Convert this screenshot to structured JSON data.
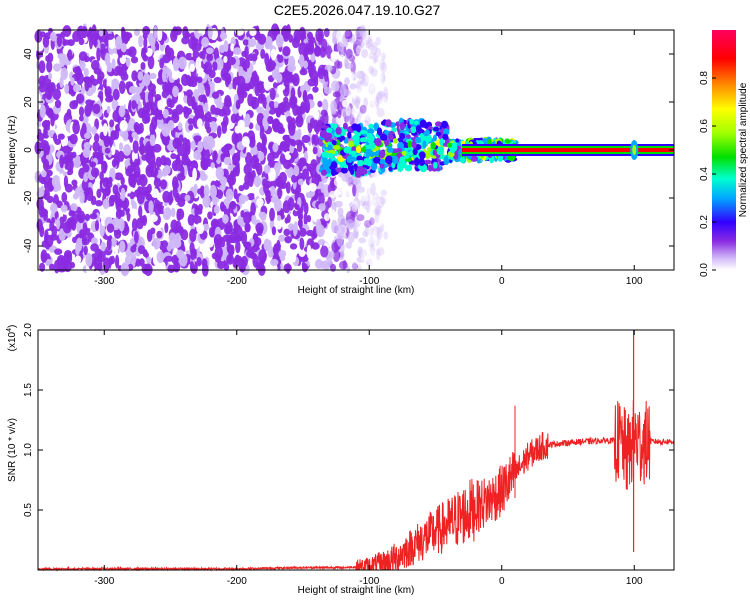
{
  "title": "C2E5.2026.047.19.10.G27",
  "chart_data": [
    {
      "type": "heatmap",
      "xlabel": "Height of straight line (km)",
      "ylabel": "Frequency (Hz)",
      "xlim": [
        -350,
        130
      ],
      "ylim": [
        -50,
        50
      ],
      "xticks": [
        -300,
        -200,
        -100,
        0,
        100
      ],
      "yticks": [
        -40,
        -20,
        0,
        20,
        40
      ],
      "colorbar": {
        "label": "Normalized spectral amplitude",
        "range": [
          0.0,
          1.0
        ],
        "ticks": [
          0.0,
          0.2,
          0.4,
          0.6,
          0.8
        ],
        "colormap": [
          "#ffffff",
          "#d0b8f8",
          "#8a2be2",
          "#3000ff",
          "#00a8ff",
          "#00ffd0",
          "#00e000",
          "#a0ff00",
          "#ffff00",
          "#ff8000",
          "#ff0000",
          "#ff0060"
        ]
      },
      "noise_region_km": [
        -350,
        -95
      ],
      "carrier": {
        "x_start_km": -30,
        "x_end_km": 130,
        "frequency_hz": 0,
        "amplitude": 0.95
      },
      "transition_region_km": [
        -135,
        -30
      ],
      "spike_at_km": 100
    },
    {
      "type": "line",
      "xlabel": "Height of straight line (km)",
      "ylabel": "SNR (10 * v/v)",
      "y_multiplier": "(x10",
      "y_multiplier_exp": "4",
      "y_multiplier_close": ")",
      "xlim": [
        -350,
        130
      ],
      "ylim": [
        0,
        2.0
      ],
      "xticks": [
        -300,
        -200,
        -100,
        0,
        100
      ],
      "yticks": [
        0.5,
        1.0,
        1.5,
        2.0
      ],
      "series": [
        {
          "color": "#ee2222",
          "x": [
            -350,
            -300,
            -250,
            -200,
            -150,
            -120,
            -100,
            -90,
            -80,
            -70,
            -60,
            -50,
            -40,
            -30,
            -20,
            -10,
            0,
            10,
            20,
            30,
            40,
            60,
            80,
            90,
            95,
            100,
            105,
            110,
            120,
            130
          ],
          "y": [
            0.01,
            0.01,
            0.01,
            0.01,
            0.02,
            0.02,
            0.03,
            0.05,
            0.1,
            0.18,
            0.25,
            0.32,
            0.38,
            0.45,
            0.52,
            0.58,
            0.66,
            0.8,
            0.95,
            1.03,
            1.05,
            1.07,
            1.08,
            1.07,
            0.95,
            1.1,
            1.05,
            1.07,
            1.07,
            1.07
          ]
        }
      ]
    }
  ]
}
